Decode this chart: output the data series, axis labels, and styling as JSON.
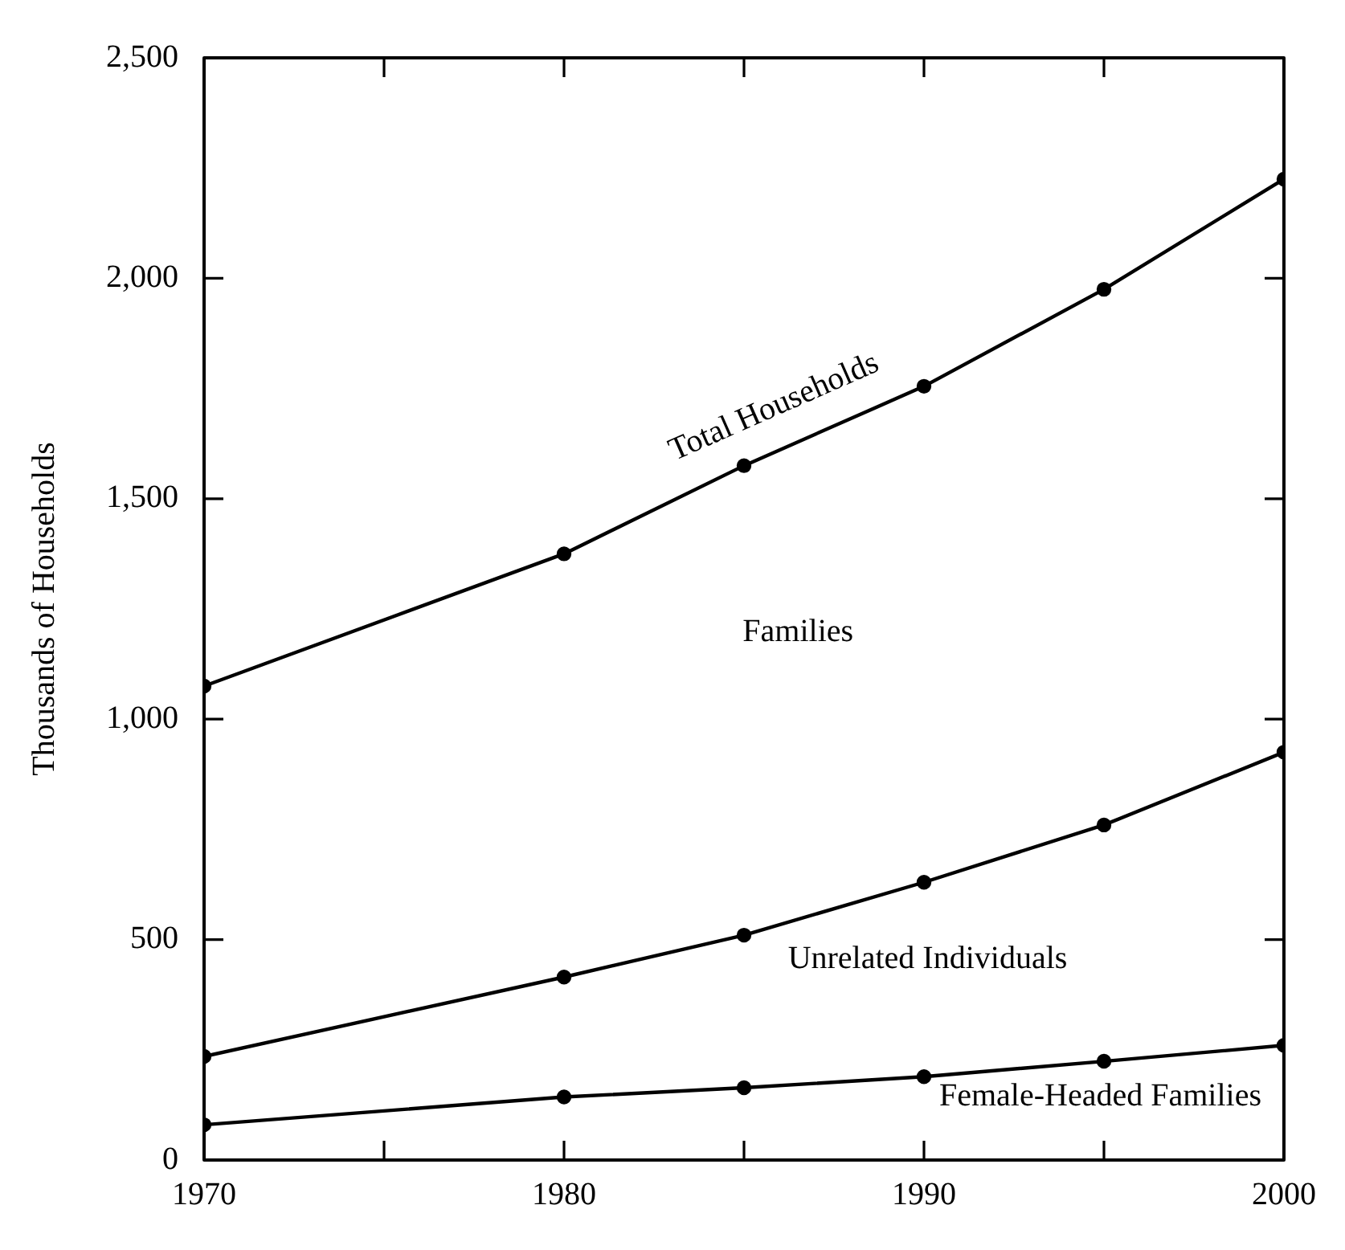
{
  "chart_data": {
    "type": "line",
    "ylabel": "Thousands of Households",
    "x": [
      1970,
      1980,
      1985,
      1990,
      1995,
      2000
    ],
    "series": [
      {
        "name": "Total Households",
        "color": "#000000",
        "values": [
          1075,
          1375,
          1575,
          1755,
          1975,
          2225
        ]
      },
      {
        "color": "#000000",
        "values": [
          235,
          415,
          510,
          630,
          760,
          925
        ]
      },
      {
        "name": "Female-Headed Families",
        "color": "#000000",
        "values": [
          80,
          143,
          164,
          189,
          224,
          260
        ]
      }
    ],
    "xlim": [
      1970,
      2000
    ],
    "xticks": [
      1970,
      {
        "value": 1975,
        "label": null
      },
      1980,
      {
        "value": 1985,
        "label": null
      },
      1990,
      {
        "value": 1995,
        "label": null
      },
      2000
    ],
    "ylim": [
      0,
      2500
    ],
    "yticks": [
      {
        "value": 0,
        "label": "0"
      },
      {
        "value": 500,
        "label": "500"
      },
      {
        "value": 1000,
        "label": "1,000"
      },
      {
        "value": 1500,
        "label": "1,500"
      },
      {
        "value": 2000,
        "label": "2,000"
      },
      {
        "value": 2500,
        "label": "2,500"
      }
    ],
    "annotations": [
      "Families",
      "Unrelated Individuals"
    ],
    "grid": false,
    "legend": false,
    "marker": "circle",
    "line_style": "solid"
  }
}
